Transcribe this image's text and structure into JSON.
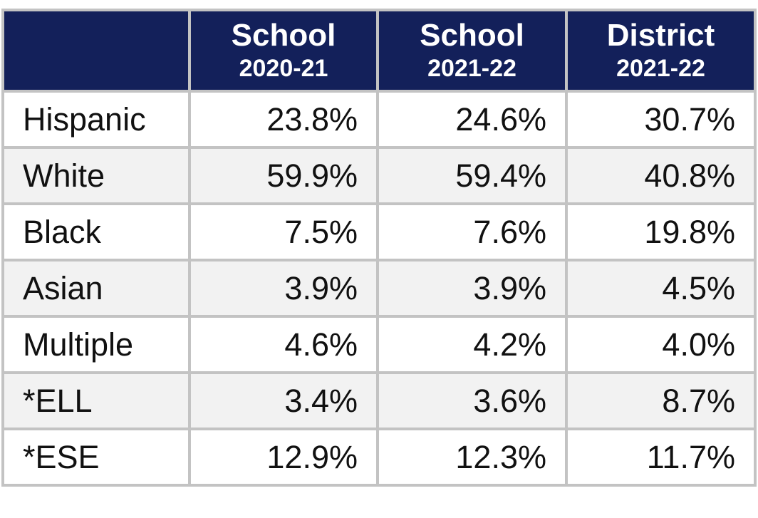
{
  "table": {
    "header": [
      {
        "line1": "School",
        "line2": "2020-21"
      },
      {
        "line1": "School",
        "line2": "2021-22"
      },
      {
        "line1": "District",
        "line2": "2021-22"
      }
    ],
    "rows": [
      [
        "Hispanic",
        "23.8%",
        "24.6%",
        "30.7%"
      ],
      [
        "White",
        "59.9%",
        "59.4%",
        "40.8%"
      ],
      [
        "Black",
        "7.5%",
        "7.6%",
        "19.8%"
      ],
      [
        "Asian",
        "3.9%",
        "3.9%",
        "4.5%"
      ],
      [
        "Multiple",
        "4.6%",
        "4.2%",
        "4.0%"
      ],
      [
        "*ELL",
        "3.4%",
        "3.6%",
        "8.7%"
      ],
      [
        "*ESE",
        "12.9%",
        "12.3%",
        "11.7%"
      ]
    ]
  }
}
